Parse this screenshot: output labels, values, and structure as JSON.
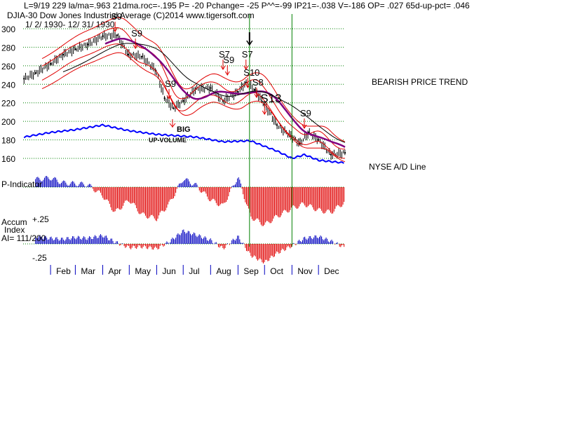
{
  "header": {
    "line1": "L=9/19  229  la/ma=.963 21dma.roc=-.195 P= -20 Pchange= -25 P^^=-99 IP21=-.038 V=-186 OP= .027 65d-up-pct= .046",
    "line2": "DJIA-30  Dow Jones Industrial Average   (C)2014  www.tigersoft.com",
    "line3": "1/ 2/ 1930- 12/ 31/ 1930"
  },
  "labels": {
    "trend": "BEARISH PRICE TREND",
    "ad_line": "NYSE A/D Line",
    "p_indicator": "P-Indicator",
    "accum1": "Accum",
    "accum2": "Index",
    "accum3": "AI= 111/200",
    "accum_top": "+.25",
    "accum_bottom": "-.25",
    "big_up1": "BIG",
    "big_up2": "UP-VOLUME"
  },
  "colors": {
    "price_bar": "#000000",
    "band_upper": "#e00000",
    "band_lower": "#e00000",
    "ma_purple": "#800080",
    "ma_black": "#000000",
    "ad_line": "#0000ff",
    "gridline": "#008000",
    "signal_arrow": "#e00000",
    "vertical_marker": "#008000",
    "hist_positive": "#0000c0",
    "hist_negative": "#e00000"
  },
  "chart_data": {
    "type": "line",
    "title": "DJIA-30  Dow Jones Industrial Average",
    "date_range": "1/ 2/ 1930- 12/ 31/ 1930",
    "months": [
      "Feb",
      "Mar",
      "Apr",
      "May",
      "Jun",
      "Jul",
      "Aug",
      "Sep",
      "Oct",
      "Nov",
      "Dec"
    ],
    "y_ticks": [
      160,
      180,
      200,
      220,
      240,
      260,
      280,
      300
    ],
    "ylim": [
      155,
      305
    ],
    "grid": true,
    "price_series": {
      "name": "DJIA",
      "x": [
        "1930-01-02",
        "1930-01-15",
        "1930-02-01",
        "1930-02-15",
        "1930-03-01",
        "1930-03-15",
        "1930-04-01",
        "1930-04-17",
        "1930-04-30",
        "1930-05-15",
        "1930-05-31",
        "1930-06-10",
        "1930-06-20",
        "1930-07-01",
        "1930-07-15",
        "1930-08-01",
        "1930-08-15",
        "1930-09-01",
        "1930-09-10",
        "1930-09-20",
        "1930-10-01",
        "1930-10-15",
        "1930-10-31",
        "1930-11-10",
        "1930-11-20",
        "1930-12-01",
        "1930-12-15",
        "1930-12-31"
      ],
      "values": [
        246,
        252,
        262,
        272,
        278,
        283,
        292,
        293,
        272,
        270,
        255,
        225,
        214,
        222,
        235,
        236,
        222,
        232,
        242,
        234,
        218,
        196,
        184,
        176,
        188,
        180,
        164,
        166
      ]
    },
    "series": [
      {
        "name": "NYSE A/D Line",
        "x": [
          "1930-01-02",
          "1930-02-01",
          "1930-03-01",
          "1930-04-01",
          "1930-04-30",
          "1930-05-31",
          "1930-06-15",
          "1930-07-15",
          "1930-08-15",
          "1930-09-15",
          "1930-10-01",
          "1930-10-15",
          "1930-11-01",
          "1930-11-15",
          "1930-12-01",
          "1930-12-31"
        ],
        "values": [
          183,
          188,
          191,
          196,
          190,
          186,
          185,
          183,
          178,
          179,
          173,
          168,
          160,
          164,
          158,
          155
        ]
      }
    ],
    "signals": [
      {
        "label": "S9",
        "date": "1930-04-15"
      },
      {
        "label": "S9",
        "date": "1930-05-08"
      },
      {
        "label": "S9",
        "date": "1930-06-15"
      },
      {
        "label": "S7",
        "date": "1930-08-15"
      },
      {
        "label": "S9",
        "date": "1930-08-20"
      },
      {
        "label": "S7",
        "date": "1930-09-10"
      },
      {
        "label": "S10",
        "date": "1930-09-12"
      },
      {
        "label": "S8",
        "date": "1930-09-22"
      },
      {
        "label": "S13",
        "date": "1930-10-01"
      },
      {
        "label": "S9",
        "date": "1930-11-15"
      }
    ],
    "vertical_markers": [
      "1930-09-14",
      "1930-11-01"
    ],
    "p_indicator": {
      "name": "P-Indicator",
      "x": [
        "1930-01-15",
        "1930-02-01",
        "1930-02-15",
        "1930-03-01",
        "1930-03-15",
        "1930-04-01",
        "1930-04-15",
        "1930-05-01",
        "1930-05-15",
        "1930-06-01",
        "1930-06-15",
        "1930-07-01",
        "1930-07-15",
        "1930-08-01",
        "1930-08-15",
        "1930-09-01",
        "1930-09-15",
        "1930-10-01",
        "1930-10-15",
        "1930-11-01",
        "1930-11-15",
        "1930-12-01",
        "1930-12-15",
        "1930-12-31"
      ],
      "values": [
        18,
        22,
        10,
        8,
        6,
        -20,
        -60,
        -30,
        -65,
        -75,
        -40,
        20,
        5,
        -30,
        -45,
        25,
        -70,
        -90,
        -70,
        -50,
        -40,
        -55,
        -60,
        -35
      ]
    },
    "accum_index": {
      "name": "AI",
      "x": [
        "1930-01-15",
        "1930-02-01",
        "1930-02-15",
        "1930-03-01",
        "1930-03-15",
        "1930-04-01",
        "1930-04-15",
        "1930-05-01",
        "1930-05-15",
        "1930-06-01",
        "1930-06-15",
        "1930-07-01",
        "1930-07-15",
        "1930-08-01",
        "1930-08-15",
        "1930-09-01",
        "1930-09-15",
        "1930-10-01",
        "1930-10-15",
        "1930-11-01",
        "1930-11-15",
        "1930-12-01",
        "1930-12-15",
        "1930-12-31"
      ],
      "values": [
        0.08,
        0.06,
        0.05,
        0.07,
        0.06,
        0.09,
        0.02,
        -0.04,
        -0.03,
        -0.05,
        0.02,
        0.14,
        0.1,
        0.04,
        -0.05,
        0.08,
        -0.12,
        -0.2,
        -0.1,
        -0.02,
        0.06,
        0.08,
        0.03,
        -0.04
      ],
      "ylim": [
        -0.25,
        0.25
      ]
    }
  }
}
